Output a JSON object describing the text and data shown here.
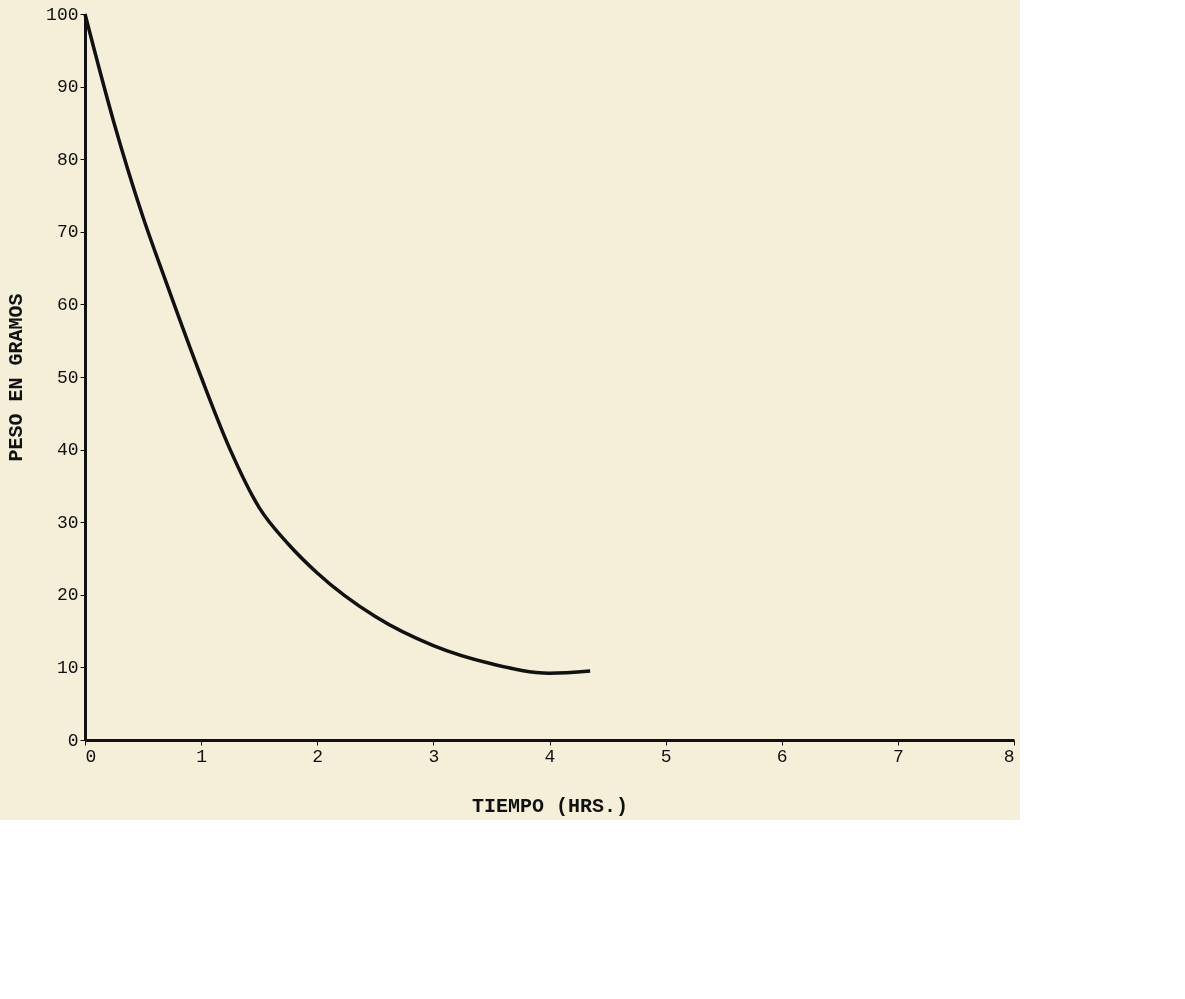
{
  "chart_data": {
    "type": "line",
    "xlabel": "TIEMPO (HRS.)",
    "ylabel": "PESO EN GRAMOS",
    "x": [
      0,
      0.25,
      0.5,
      0.7,
      1,
      1.25,
      1.5,
      1.75,
      2,
      2.5,
      3,
      3.5,
      4,
      4.35
    ],
    "series": [
      {
        "color": "#111111",
        "values": [
          100,
          85,
          72,
          63,
          50,
          40,
          32,
          27,
          23,
          17,
          13,
          10.5,
          9.2,
          9.5
        ]
      }
    ],
    "xlim": [
      0,
      8
    ],
    "xticks": [
      0,
      1,
      2,
      3,
      4,
      5,
      6,
      7,
      8
    ],
    "ylim": [
      0,
      100
    ],
    "yticks": [
      0,
      10,
      20,
      30,
      40,
      50,
      60,
      70,
      80,
      90,
      100
    ],
    "grid": false,
    "marker": "none",
    "line_style": "solid"
  }
}
